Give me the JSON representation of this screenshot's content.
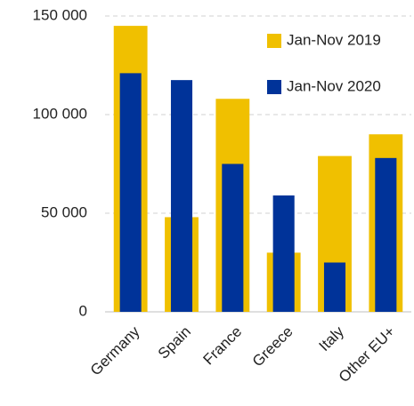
{
  "chart_data": {
    "type": "bar",
    "categories": [
      "Germany",
      "Spain",
      "France",
      "Greece",
      "Italy",
      "Other EU+"
    ],
    "series": [
      {
        "name": "Jan-Nov 2019",
        "color": "#f0c000",
        "values": [
          145000,
          48000,
          108000,
          30000,
          79000,
          90000
        ]
      },
      {
        "name": "Jan-Nov 2020",
        "color": "#003399",
        "values": [
          121000,
          117500,
          75000,
          59000,
          25000,
          78000
        ]
      }
    ],
    "ylim": [
      0,
      150000
    ],
    "yticks": [
      {
        "value": 0,
        "label": "0"
      },
      {
        "value": 50000,
        "label": "50 000"
      },
      {
        "value": 100000,
        "label": "100 000"
      },
      {
        "value": 150000,
        "label": "150 000"
      }
    ],
    "grid": true,
    "legend": "upper right"
  }
}
